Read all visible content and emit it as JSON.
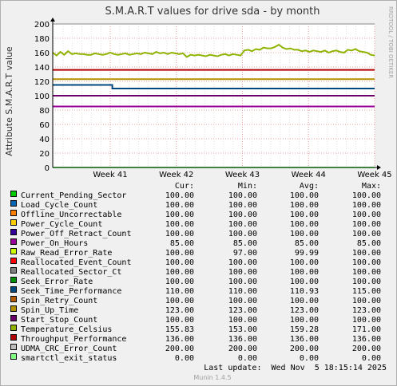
{
  "chart_data": {
    "type": "line",
    "title": "S.M.A.R.T values for drive sda - by month",
    "ylabel": "Attribute S.M.A.R.T value",
    "watermark": "RRDTOOL / TOBI OETIKER",
    "ylim": [
      0,
      200
    ],
    "y_ticks": [
      0,
      20,
      40,
      60,
      80,
      100,
      120,
      140,
      160,
      180,
      200
    ],
    "x_ticks": [
      "Week 41",
      "Week 42",
      "Week 43",
      "Week 44",
      "Week 45"
    ],
    "series": [
      {
        "name": "Current_Pending_Sector",
        "color": "#00cc00",
        "values": [
          100,
          100
        ]
      },
      {
        "name": "Load_Cycle_Count",
        "color": "#0066b3",
        "values": [
          100,
          100
        ]
      },
      {
        "name": "Offline_Uncorrectable",
        "color": "#ff8000",
        "values": [
          100,
          100
        ]
      },
      {
        "name": "Power_Cycle_Count",
        "color": "#ffcc00",
        "values": [
          100,
          100
        ]
      },
      {
        "name": "Power_Off_Retract_Count",
        "color": "#330099",
        "values": [
          100,
          100
        ]
      },
      {
        "name": "Power_On_Hours",
        "color": "#990099",
        "values": [
          85,
          85
        ]
      },
      {
        "name": "Raw_Read_Error_Rate",
        "color": "#ccff00",
        "values": [
          100,
          100,
          100,
          97,
          100,
          100
        ]
      },
      {
        "name": "Reallocated_Event_Count",
        "color": "#ff0000",
        "values": [
          100,
          100
        ]
      },
      {
        "name": "Reallocated_Sector_Ct",
        "color": "#808080",
        "values": [
          100,
          100
        ]
      },
      {
        "name": "Seek_Error_Rate",
        "color": "#008f00",
        "values": [
          100,
          100
        ]
      },
      {
        "name": "Seek_Time_Performance",
        "color": "#00487d",
        "values": [
          115,
          115,
          115,
          110,
          110,
          110
        ]
      },
      {
        "name": "Spin_Retry_Count",
        "color": "#b35a00",
        "values": [
          100,
          100
        ]
      },
      {
        "name": "Spin_Up_Time",
        "color": "#b38f00",
        "values": [
          123,
          123
        ]
      },
      {
        "name": "Start_Stop_Count",
        "color": "#6b006b",
        "values": [
          100,
          100
        ]
      },
      {
        "name": "Temperature_Celsius",
        "color": "#8fb300",
        "values": [
          160,
          156,
          161,
          157,
          162,
          158,
          159,
          158,
          158,
          157,
          157,
          159,
          158,
          157,
          158,
          160,
          158,
          157,
          158,
          159,
          157,
          158,
          159,
          158,
          160,
          159,
          158,
          161,
          159,
          160,
          158,
          160,
          159,
          158,
          159,
          154,
          157,
          156,
          157,
          156,
          155,
          157,
          156,
          155,
          157,
          158,
          156,
          158,
          157,
          156,
          163,
          164,
          162,
          165,
          164,
          167,
          166,
          166,
          168,
          171,
          167,
          165,
          166,
          164,
          164,
          162,
          163,
          161,
          163,
          162,
          161,
          163,
          160,
          162,
          163,
          161,
          160,
          164,
          163,
          165,
          162,
          161,
          160,
          157,
          156
        ]
      },
      {
        "name": "Throughput_Performance",
        "color": "#b30000",
        "values": [
          136,
          136
        ]
      },
      {
        "name": "UDMA_CRC_Error_Count",
        "color": "#bebebe",
        "values": [
          200,
          200
        ]
      },
      {
        "name": "smartctl_exit_status",
        "color": "#80ff80",
        "values": [
          0,
          0
        ]
      }
    ]
  },
  "legend": {
    "headers": {
      "cur": "Cur:",
      "min": "Min:",
      "avg": "Avg:",
      "max": "Max:"
    },
    "rows": [
      {
        "name": "Current_Pending_Sector",
        "cur": "100.00",
        "min": "100.00",
        "avg": "100.00",
        "max": "100.00"
      },
      {
        "name": "Load_Cycle_Count",
        "cur": "100.00",
        "min": "100.00",
        "avg": "100.00",
        "max": "100.00"
      },
      {
        "name": "Offline_Uncorrectable",
        "cur": "100.00",
        "min": "100.00",
        "avg": "100.00",
        "max": "100.00"
      },
      {
        "name": "Power_Cycle_Count",
        "cur": "100.00",
        "min": "100.00",
        "avg": "100.00",
        "max": "100.00"
      },
      {
        "name": "Power_Off_Retract_Count",
        "cur": "100.00",
        "min": "100.00",
        "avg": "100.00",
        "max": "100.00"
      },
      {
        "name": "Power_On_Hours",
        "cur": "85.00",
        "min": "85.00",
        "avg": "85.00",
        "max": "85.00"
      },
      {
        "name": "Raw_Read_Error_Rate",
        "cur": "100.00",
        "min": "97.00",
        "avg": "99.99",
        "max": "100.00"
      },
      {
        "name": "Reallocated_Event_Count",
        "cur": "100.00",
        "min": "100.00",
        "avg": "100.00",
        "max": "100.00"
      },
      {
        "name": "Reallocated_Sector_Ct",
        "cur": "100.00",
        "min": "100.00",
        "avg": "100.00",
        "max": "100.00"
      },
      {
        "name": "Seek_Error_Rate",
        "cur": "100.00",
        "min": "100.00",
        "avg": "100.00",
        "max": "100.00"
      },
      {
        "name": "Seek_Time_Performance",
        "cur": "110.00",
        "min": "110.00",
        "avg": "110.93",
        "max": "115.00"
      },
      {
        "name": "Spin_Retry_Count",
        "cur": "100.00",
        "min": "100.00",
        "avg": "100.00",
        "max": "100.00"
      },
      {
        "name": "Spin_Up_Time",
        "cur": "123.00",
        "min": "123.00",
        "avg": "123.00",
        "max": "123.00"
      },
      {
        "name": "Start_Stop_Count",
        "cur": "100.00",
        "min": "100.00",
        "avg": "100.00",
        "max": "100.00"
      },
      {
        "name": "Temperature_Celsius",
        "cur": "155.83",
        "min": "153.00",
        "avg": "159.28",
        "max": "171.00"
      },
      {
        "name": "Throughput_Performance",
        "cur": "136.00",
        "min": "136.00",
        "avg": "136.00",
        "max": "136.00"
      },
      {
        "name": "UDMA_CRC_Error_Count",
        "cur": "200.00",
        "min": "200.00",
        "avg": "200.00",
        "max": "200.00"
      },
      {
        "name": "smartctl_exit_status",
        "cur": "0.00",
        "min": "0.00",
        "avg": "0.00",
        "max": "0.00"
      }
    ]
  },
  "footer": {
    "last_update": "Last update:  Wed Nov  5 18:15:14 2025",
    "munin": "Munin 1.4.5"
  }
}
